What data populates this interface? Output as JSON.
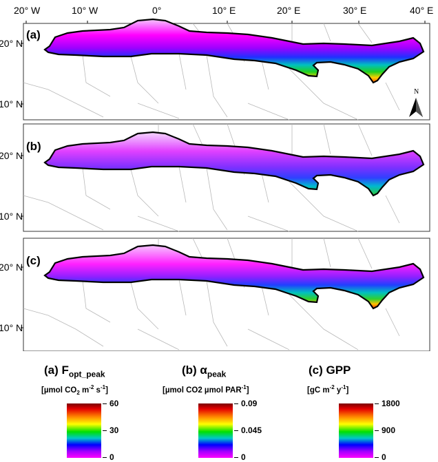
{
  "maps": {
    "x_ticks": [
      "20° W",
      "10° W",
      "0°",
      "10° E",
      "20° E",
      "30° E",
      "40° E"
    ],
    "y_ticks": [
      "20° N",
      "10° N"
    ],
    "panels": [
      {
        "label": "(a)"
      },
      {
        "label": "(b)"
      },
      {
        "label": "(c)"
      }
    ],
    "north_arrow": {
      "label": "N",
      "icon": "north-arrow-icon"
    }
  },
  "legends": [
    {
      "id": "a",
      "title_main": "(a) F",
      "title_sub": "opt_peak",
      "unit_parts": [
        "[µmol CO",
        "2",
        " m",
        "-2",
        " s",
        "-1",
        "]"
      ],
      "max": "60",
      "mid": "30",
      "min": "0"
    },
    {
      "id": "b",
      "title_main": "(b) α",
      "title_sub": "peak",
      "unit_parts": [
        "[µmol CO2 µmol PAR",
        "-1",
        "]"
      ],
      "max": "0.09",
      "mid": "0.045",
      "min": "0"
    },
    {
      "id": "c",
      "title_main": "(c) GPP",
      "title_sub": "",
      "unit_parts": [
        "[gC m",
        "-2",
        " y",
        "-1",
        "]"
      ],
      "max": "1800",
      "mid": "900",
      "min": "0"
    }
  ],
  "colorscale": [
    "#7a0000",
    "#e40000",
    "#ff8c00",
    "#ffff00",
    "#00e000",
    "#00c8c8",
    "#0000ff",
    "#a000ff",
    "#ff00ff"
  ]
}
